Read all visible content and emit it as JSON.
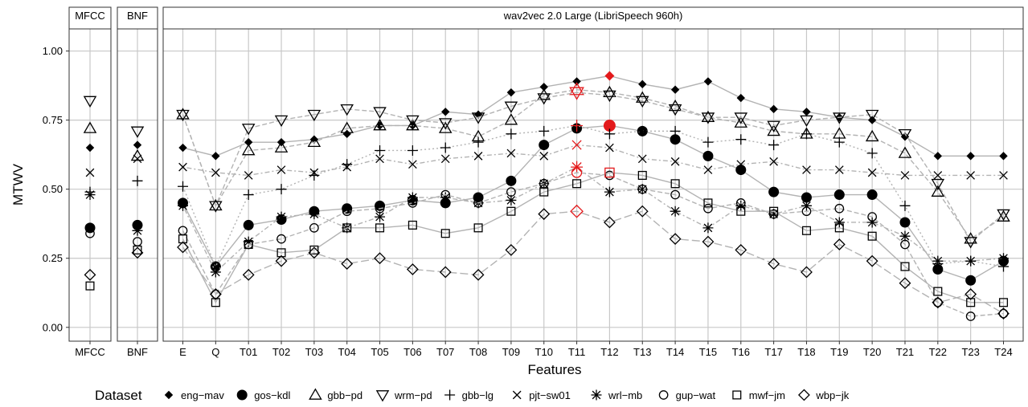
{
  "chart_data": {
    "type": "line",
    "ylabel": "MTWV",
    "xlabel": "Features",
    "ylim": [
      -0.05,
      1.08
    ],
    "yticks": [
      "0.00",
      "0.25",
      "0.50",
      "0.75",
      "1.00"
    ],
    "grid": true,
    "legend_title": "Dataset",
    "legend_position": "bottom",
    "highlight_color": "#e31a1c",
    "series_color": "#000000",
    "line_color": "#b3b3b3",
    "panels": [
      {
        "strip": "MFCC",
        "categories": [
          "MFCC"
        ]
      },
      {
        "strip": "BNF",
        "categories": [
          "BNF"
        ]
      },
      {
        "strip": "wav2vec 2.0 Large (LibriSpeech 960h)",
        "categories": [
          "E",
          "Q",
          "T01",
          "T02",
          "T03",
          "T04",
          "T05",
          "T06",
          "T07",
          "T08",
          "T09",
          "T10",
          "T11",
          "T12",
          "T13",
          "T14",
          "T15",
          "T16",
          "T17",
          "T18",
          "T19",
          "T20",
          "T21",
          "T22",
          "T23",
          "T24"
        ]
      }
    ],
    "series": [
      {
        "name": "eng−mav",
        "shape": "diamond-filled",
        "dash": "solid",
        "mfcc": 0.65,
        "bnf": 0.66,
        "best": "T12",
        "values": [
          0.65,
          0.62,
          0.67,
          0.67,
          0.68,
          0.7,
          0.73,
          0.73,
          0.78,
          0.77,
          0.85,
          0.87,
          0.89,
          0.91,
          0.88,
          0.86,
          0.89,
          0.83,
          0.79,
          0.78,
          0.76,
          0.75,
          0.69,
          0.62,
          0.62,
          0.62
        ]
      },
      {
        "name": "gos−kdl",
        "shape": "circle-filled",
        "dash": "solid",
        "mfcc": 0.36,
        "bnf": 0.37,
        "best": "T12",
        "values": [
          0.45,
          0.22,
          0.37,
          0.39,
          0.42,
          0.43,
          0.44,
          0.46,
          0.45,
          0.47,
          0.53,
          0.66,
          0.72,
          0.73,
          0.71,
          0.68,
          0.62,
          0.57,
          0.49,
          0.47,
          0.48,
          0.48,
          0.38,
          0.21,
          0.17,
          0.24
        ]
      },
      {
        "name": "gbb−pd",
        "shape": "triangle-up",
        "dash": "dashed",
        "mfcc": 0.72,
        "bnf": 0.62,
        "best": "T11",
        "values": [
          0.77,
          0.44,
          0.64,
          0.65,
          0.67,
          0.72,
          0.73,
          0.73,
          0.72,
          0.69,
          0.75,
          0.84,
          0.86,
          0.85,
          0.83,
          0.8,
          0.76,
          0.74,
          0.71,
          0.7,
          0.7,
          0.69,
          0.63,
          0.49,
          0.32,
          0.4
        ]
      },
      {
        "name": "wrm−pd",
        "shape": "triangle-down",
        "dash": "dashed",
        "mfcc": 0.82,
        "bnf": 0.71,
        "best": "T11",
        "values": [
          0.77,
          0.44,
          0.72,
          0.75,
          0.77,
          0.79,
          0.78,
          0.75,
          0.74,
          0.76,
          0.8,
          0.83,
          0.85,
          0.84,
          0.82,
          0.79,
          0.76,
          0.76,
          0.73,
          0.75,
          0.76,
          0.77,
          0.7,
          0.52,
          0.31,
          0.41
        ]
      },
      {
        "name": "gbb−lg",
        "shape": "plus",
        "dash": "dotted",
        "mfcc": 0.49,
        "bnf": 0.53,
        "best": "T11",
        "values": [
          0.51,
          0.22,
          0.48,
          0.5,
          0.55,
          0.59,
          0.64,
          0.64,
          0.65,
          0.67,
          0.7,
          0.71,
          0.73,
          0.7,
          0.71,
          0.71,
          0.67,
          0.68,
          0.66,
          0.7,
          0.67,
          0.63,
          0.44,
          0.23,
          0.24,
          0.22
        ]
      },
      {
        "name": "pjt−sw01",
        "shape": "cross",
        "dash": "dotdash",
        "mfcc": 0.56,
        "bnf": 0.61,
        "best": "T11",
        "values": [
          0.58,
          0.56,
          0.55,
          0.57,
          0.56,
          0.58,
          0.61,
          0.59,
          0.61,
          0.62,
          0.63,
          0.62,
          0.66,
          0.65,
          0.61,
          0.6,
          0.57,
          0.59,
          0.6,
          0.57,
          0.57,
          0.56,
          0.55,
          0.55,
          0.55,
          0.55
        ]
      },
      {
        "name": "wrl−mb",
        "shape": "asterisk",
        "dash": "dotdash",
        "mfcc": 0.48,
        "bnf": 0.35,
        "best": "T11",
        "values": [
          0.44,
          0.2,
          0.31,
          0.4,
          0.41,
          0.36,
          0.4,
          0.47,
          0.47,
          0.45,
          0.46,
          0.52,
          0.58,
          0.49,
          0.5,
          0.42,
          0.36,
          0.44,
          0.41,
          0.44,
          0.38,
          0.38,
          0.33,
          0.24,
          0.24,
          0.25
        ]
      },
      {
        "name": "gup−wat",
        "shape": "circle-open",
        "dash": "dashed",
        "mfcc": 0.34,
        "bnf": 0.31,
        "best": "T11",
        "values": [
          0.35,
          0.12,
          0.3,
          0.32,
          0.36,
          0.42,
          0.43,
          0.45,
          0.48,
          0.45,
          0.49,
          0.52,
          0.56,
          0.55,
          0.5,
          0.48,
          0.43,
          0.45,
          0.41,
          0.42,
          0.43,
          0.4,
          0.3,
          0.09,
          0.04,
          0.05
        ]
      },
      {
        "name": "mwf−jm",
        "shape": "square-open",
        "dash": "solid",
        "mfcc": 0.15,
        "bnf": 0.28,
        "best": "T12",
        "values": [
          0.32,
          0.09,
          0.3,
          0.27,
          0.28,
          0.36,
          0.36,
          0.37,
          0.34,
          0.36,
          0.42,
          0.49,
          0.52,
          0.56,
          0.55,
          0.52,
          0.45,
          0.42,
          0.42,
          0.35,
          0.36,
          0.33,
          0.22,
          0.13,
          0.09,
          0.09
        ]
      },
      {
        "name": "wbp−jk",
        "shape": "diamond-open",
        "dash": "longdash",
        "mfcc": 0.19,
        "bnf": 0.27,
        "best": "T11",
        "values": [
          0.29,
          0.12,
          0.19,
          0.24,
          0.27,
          0.23,
          0.25,
          0.21,
          0.2,
          0.19,
          0.28,
          0.41,
          0.42,
          0.38,
          0.42,
          0.32,
          0.31,
          0.28,
          0.23,
          0.2,
          0.3,
          0.24,
          0.16,
          0.09,
          0.12,
          0.05
        ]
      }
    ]
  }
}
